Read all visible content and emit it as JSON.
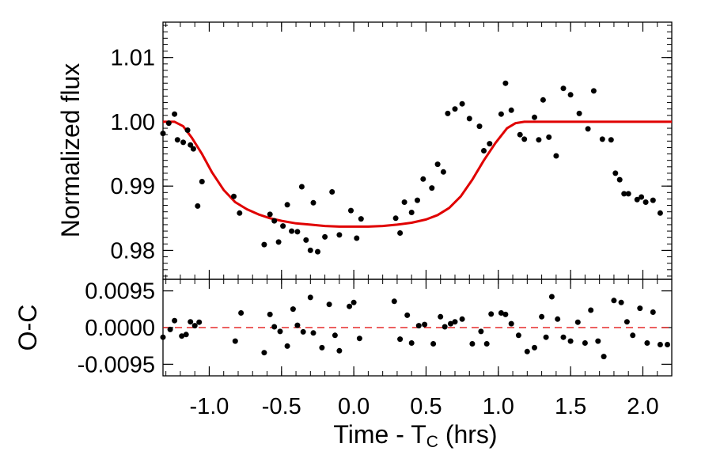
{
  "chart_data": [
    {
      "type": "scatter",
      "panel": "top",
      "xlabel": "Time - T",
      "xlabel_sub": "C",
      "xlabel_unit": " (hrs)",
      "ylabel": "Normalized flux",
      "xlim": [
        -1.32,
        2.2
      ],
      "ylim": [
        0.9755,
        1.0155
      ],
      "x_ticks": [
        -1.0,
        -0.5,
        0.0,
        0.5,
        1.0,
        1.5,
        2.0
      ],
      "x_tick_labels": [
        "-1.0",
        "-0.5",
        "0.0",
        "0.5",
        "1.0",
        "1.5",
        "2.0"
      ],
      "y_ticks": [
        0.98,
        0.99,
        1.0,
        1.01
      ],
      "y_tick_labels": [
        "0.98",
        "0.99",
        "1.00",
        "1.01"
      ],
      "grid": false,
      "series": [
        {
          "kind": "points",
          "color": "#000000",
          "x": [
            -1.32,
            -1.28,
            -1.24,
            -1.22,
            -1.18,
            -1.15,
            -1.13,
            -1.11,
            -1.08,
            -1.05,
            -0.83,
            -0.79,
            -0.62,
            -0.58,
            -0.55,
            -0.52,
            -0.49,
            -0.46,
            -0.43,
            -0.39,
            -0.36,
            -0.33,
            -0.3,
            -0.28,
            -0.25,
            -0.2,
            -0.15,
            -0.1,
            -0.02,
            0.02,
            0.05,
            0.29,
            0.32,
            0.35,
            0.4,
            0.44,
            0.48,
            0.54,
            0.58,
            0.62,
            0.65,
            0.7,
            0.75,
            0.8,
            0.87,
            0.9,
            0.94,
            1.02,
            1.05,
            1.09,
            1.15,
            1.18,
            1.25,
            1.28,
            1.31,
            1.35,
            1.4,
            1.45,
            1.5,
            1.56,
            1.62,
            1.66,
            1.72,
            1.78,
            1.81,
            1.84,
            1.87,
            1.9,
            1.96,
            1.99,
            2.02,
            2.07,
            2.12
          ],
          "y": [
            0.9982,
            0.9998,
            1.0012,
            0.9972,
            0.9968,
            0.9987,
            0.9964,
            0.9958,
            0.9869,
            0.9907,
            0.9884,
            0.9858,
            0.9809,
            0.9856,
            0.9846,
            0.9813,
            0.9838,
            0.9871,
            0.983,
            0.9829,
            0.9899,
            0.9816,
            0.98,
            0.9874,
            0.9798,
            0.9821,
            0.9891,
            0.9824,
            0.9862,
            0.9819,
            0.9849,
            0.985,
            0.9827,
            0.9875,
            0.9859,
            0.9878,
            0.9911,
            0.9897,
            0.9934,
            0.9922,
            1.0013,
            1.002,
            1.0028,
            1.0005,
            0.9993,
            0.9955,
            0.9966,
            1.0012,
            1.006,
            1.0018,
            0.998,
            0.9973,
            1.0007,
            0.9972,
            1.0034,
            0.9976,
            0.9947,
            1.0052,
            1.0042,
            1.0013,
            0.9989,
            1.0048,
            0.9973,
            0.9972,
            0.992,
            0.991,
            0.9888,
            0.9888,
            0.9879,
            0.9883,
            0.9875,
            0.9878,
            0.9858
          ]
        },
        {
          "kind": "model",
          "color": "#e00000",
          "x": [
            -1.32,
            -1.24,
            -1.18,
            -1.12,
            -1.05,
            -0.98,
            -0.9,
            -0.82,
            -0.74,
            -0.66,
            -0.58,
            -0.5,
            -0.4,
            -0.3,
            -0.2,
            -0.1,
            0.0,
            0.1,
            0.2,
            0.3,
            0.4,
            0.5,
            0.58,
            0.66,
            0.74,
            0.82,
            0.9,
            0.98,
            1.06,
            1.12,
            1.18,
            2.2
          ],
          "y": [
            1.0,
            1.0,
            0.9993,
            0.9975,
            0.995,
            0.9921,
            0.9894,
            0.9875,
            0.9864,
            0.9856,
            0.985,
            0.9846,
            0.9842,
            0.984,
            0.9838,
            0.9837,
            0.9837,
            0.9837,
            0.9838,
            0.984,
            0.9843,
            0.9848,
            0.9855,
            0.9866,
            0.9884,
            0.991,
            0.994,
            0.9967,
            0.999,
            0.9998,
            1.0,
            1.0
          ]
        }
      ]
    },
    {
      "type": "scatter",
      "panel": "bottom",
      "ylabel": "O-C",
      "xlim": [
        -1.32,
        2.2
      ],
      "ylim": [
        -0.0125,
        0.0125
      ],
      "y_ticks": [
        0.0095,
        0.0,
        -0.0095
      ],
      "y_tick_labels": [
        "0.0095",
        "0.0000",
        "-0.0095"
      ],
      "grid": false,
      "series": [
        {
          "kind": "points",
          "color": "#000000",
          "x": [
            -1.32,
            -1.27,
            -1.24,
            -1.19,
            -1.16,
            -1.13,
            -1.1,
            -1.07,
            -0.82,
            -0.78,
            -0.62,
            -0.58,
            -0.55,
            -0.51,
            -0.46,
            -0.42,
            -0.39,
            -0.35,
            -0.3,
            -0.28,
            -0.22,
            -0.17,
            -0.13,
            -0.1,
            -0.03,
            0.0,
            0.04,
            0.28,
            0.32,
            0.37,
            0.4,
            0.45,
            0.49,
            0.55,
            0.6,
            0.63,
            0.67,
            0.7,
            0.75,
            0.82,
            0.88,
            0.92,
            0.95,
            1.02,
            1.05,
            1.09,
            1.14,
            1.2,
            1.25,
            1.3,
            1.33,
            1.37,
            1.41,
            1.45,
            1.5,
            1.55,
            1.6,
            1.64,
            1.69,
            1.73,
            1.8,
            1.85,
            1.89,
            1.93,
            1.98,
            2.03,
            2.07,
            2.12,
            2.17
          ],
          "y": [
            -0.0025,
            -0.0005,
            0.0018,
            -0.0022,
            -0.0018,
            0.0015,
            0.0005,
            0.0014,
            -0.0035,
            0.0038,
            -0.0065,
            0.0034,
            0.0002,
            -0.001,
            -0.0048,
            0.0048,
            0.0006,
            -0.0011,
            0.0078,
            -0.0014,
            -0.0052,
            0.006,
            -0.002,
            -0.006,
            0.0055,
            0.0065,
            -0.0028,
            0.0068,
            -0.003,
            0.0032,
            -0.004,
            0.0005,
            0.0008,
            -0.0042,
            0.0028,
            0.0002,
            0.001,
            0.0015,
            0.0022,
            -0.0042,
            -0.001,
            -0.0042,
            0.0035,
            0.0038,
            0.0034,
            0.001,
            -0.002,
            -0.0062,
            -0.0052,
            0.0028,
            -0.0025,
            0.008,
            0.0022,
            -0.0025,
            -0.0035,
            0.0014,
            -0.004,
            0.0045,
            -0.0035,
            -0.0075,
            0.007,
            0.0065,
            0.0015,
            -0.002,
            0.005,
            -0.004,
            0.004,
            -0.0044,
            -0.0044
          ]
        },
        {
          "kind": "zero-line",
          "color": "#e00000",
          "style": "dashed",
          "y": 0.0
        }
      ]
    }
  ]
}
